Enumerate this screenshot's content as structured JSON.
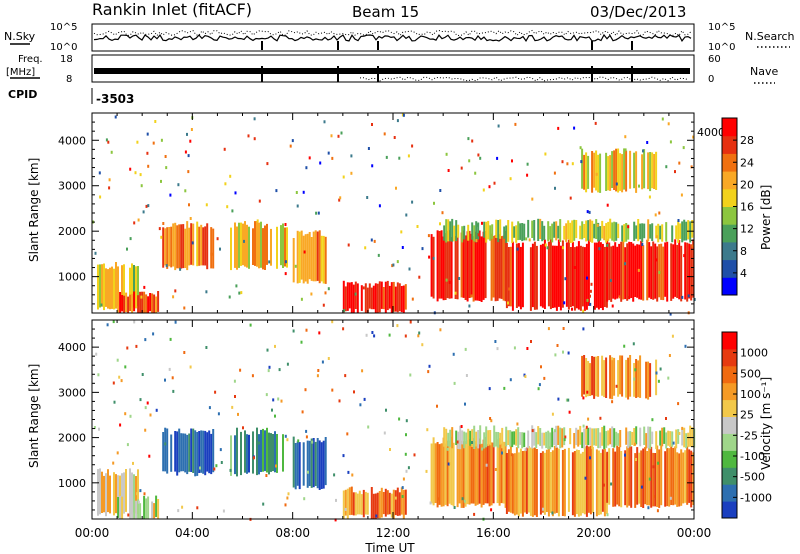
{
  "header": {
    "title": "Rankin Inlet (fitACF)",
    "beam": "Beam 15",
    "date": "03/Dec/2013"
  },
  "top_panels": {
    "nsky_label": "N.Sky",
    "nsearch_label": "N.Search",
    "nsky_ticks": [
      "10^5",
      "10^0"
    ],
    "nsearch_ticks": [
      "10^5",
      "10^0"
    ],
    "freq_label_1": "Freq.",
    "freq_label_2": "[MHz]",
    "freq_ticks": [
      "18",
      "8"
    ],
    "nave_label": "Nave",
    "nave_ticks": [
      "60",
      "0"
    ],
    "cpid_label": "CPID",
    "cpid_value": "-3503"
  },
  "chart_data": [
    {
      "type": "heatmap",
      "parameter": "power",
      "xlabel": "",
      "ylabel": "Slant Range [km]",
      "x_range_hours": [
        0,
        24
      ],
      "ylim": [
        200,
        4600
      ],
      "y_ticks": [
        "1000",
        "2000",
        "3000",
        "4000"
      ],
      "colorbar_label": "Power [dB]",
      "colorbar_ticks": [
        "28",
        "24",
        "20",
        "16",
        "12",
        "8",
        "4"
      ],
      "colorbar_colors": [
        "#0000ff",
        "#1f4fa8",
        "#3c7a8c",
        "#4aa05a",
        "#8cc63f",
        "#f2d21c",
        "#f9a825",
        "#f07010",
        "#e63010",
        "#ff0000"
      ],
      "regions": [
        {
          "t0": 0.2,
          "t1": 1.8,
          "r0": 300,
          "r1": 1200,
          "v": 0.55
        },
        {
          "t0": 1.0,
          "t1": 2.6,
          "r0": 200,
          "r1": 600,
          "v": 0.85
        },
        {
          "t0": 2.8,
          "t1": 4.8,
          "r0": 1200,
          "r1": 2100,
          "v": 0.75
        },
        {
          "t0": 5.5,
          "t1": 7.8,
          "r0": 1200,
          "r1": 2100,
          "v": 0.65
        },
        {
          "t0": 8.0,
          "t1": 9.3,
          "r0": 900,
          "r1": 1900,
          "v": 0.7
        },
        {
          "t0": 10.0,
          "t1": 12.5,
          "r0": 250,
          "r1": 800,
          "v": 0.95
        },
        {
          "t0": 13.5,
          "t1": 16.5,
          "r0": 500,
          "r1": 1900,
          "v": 0.9
        },
        {
          "t0": 16.5,
          "t1": 20.5,
          "r0": 300,
          "r1": 1700,
          "v": 1.0
        },
        {
          "t0": 20.5,
          "t1": 24.0,
          "r0": 500,
          "r1": 1700,
          "v": 0.95
        },
        {
          "t0": 14.0,
          "t1": 24.0,
          "r0": 1800,
          "r1": 2150,
          "v": 0.45
        },
        {
          "t0": 19.5,
          "t1": 22.5,
          "r0": 2900,
          "r1": 3700,
          "v": 0.6
        }
      ]
    },
    {
      "type": "heatmap",
      "parameter": "velocity",
      "xlabel": "Time UT",
      "ylabel": "Slant Range [km]",
      "x_range_hours": [
        0,
        24
      ],
      "x_ticks": [
        "00:00",
        "04:00",
        "08:00",
        "12:00",
        "16:00",
        "20:00",
        "00:00"
      ],
      "ylim": [
        200,
        4600
      ],
      "y_ticks": [
        "1000",
        "2000",
        "3000",
        "4000"
      ],
      "colorbar_label": "Velocity [m s⁻¹]",
      "colorbar_ticks": [
        "1000",
        "500",
        "100",
        "25",
        "-25",
        "-100",
        "-500",
        "-1000"
      ],
      "colorbar_colors": [
        "#1a3fbf",
        "#2d6fb0",
        "#3f8f6a",
        "#4fb83f",
        "#9fd68a",
        "#c8c8c8",
        "#f2c84a",
        "#f59a25",
        "#f06a10",
        "#e63a10",
        "#ff0000"
      ],
      "regions": [
        {
          "t0": 0.2,
          "t1": 1.8,
          "r0": 300,
          "r1": 1200,
          "v": 0.55
        },
        {
          "t0": 1.0,
          "t1": 2.6,
          "r0": 200,
          "r1": 600,
          "v": 0.5
        },
        {
          "t0": 2.8,
          "t1": 4.8,
          "r0": 1200,
          "r1": 2100,
          "v": 0.05
        },
        {
          "t0": 5.5,
          "t1": 7.8,
          "r0": 1200,
          "r1": 2100,
          "v": 0.2
        },
        {
          "t0": 8.0,
          "t1": 9.3,
          "r0": 900,
          "r1": 1900,
          "v": 0.05
        },
        {
          "t0": 10.0,
          "t1": 12.5,
          "r0": 250,
          "r1": 800,
          "v": 0.78
        },
        {
          "t0": 13.5,
          "t1": 16.5,
          "r0": 500,
          "r1": 1900,
          "v": 0.75
        },
        {
          "t0": 16.5,
          "t1": 20.5,
          "r0": 300,
          "r1": 1700,
          "v": 0.72
        },
        {
          "t0": 20.5,
          "t1": 24.0,
          "r0": 500,
          "r1": 1700,
          "v": 0.76
        },
        {
          "t0": 14.0,
          "t1": 24.0,
          "r0": 1800,
          "r1": 2150,
          "v": 0.5
        },
        {
          "t0": 19.5,
          "t1": 22.5,
          "r0": 2900,
          "r1": 3700,
          "v": 0.75
        }
      ]
    }
  ]
}
